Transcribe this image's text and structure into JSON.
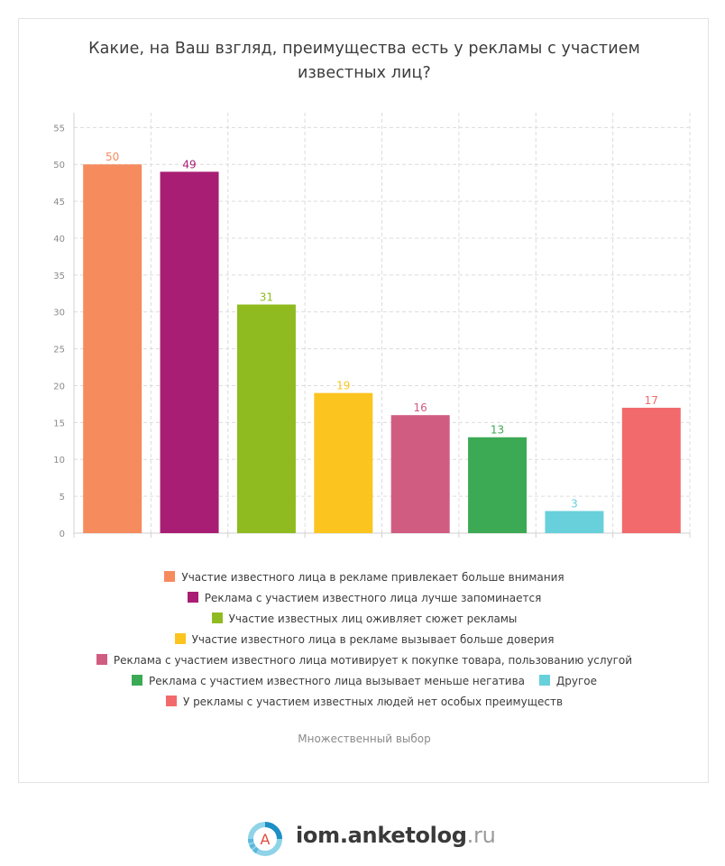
{
  "chart_data": {
    "type": "bar",
    "title_lines": [
      "Какие, на Ваш взгляд, преимущества есть у рекламы с участием",
      "известных лиц?"
    ],
    "categories": [
      "Участие известного лица в рекламе привлекает больше внимания",
      "Реклама с участием известного лица лучше запоминается",
      "Участие известных лиц оживляет сюжет рекламы",
      "Участие известного лица в рекламе вызывает больше доверия",
      "Реклама с участием известного лица мотивирует к покупке товара, пользованию услугой",
      "Реклама с участием известного лица вызывает меньше негатива",
      "Другое",
      "У рекламы с участием известных людей нет особых преимуществ"
    ],
    "values": [
      50,
      49,
      31,
      19,
      16,
      13,
      3,
      17
    ],
    "colors": [
      "#f68b5e",
      "#a81e74",
      "#8fbb21",
      "#fbc41f",
      "#d15c82",
      "#3caa55",
      "#67d0db",
      "#f26a6b"
    ],
    "ylim": [
      0,
      57
    ],
    "yticks": [
      0,
      5,
      10,
      15,
      20,
      25,
      30,
      35,
      40,
      45,
      50,
      55
    ],
    "grid": true,
    "legend_position": "bottom",
    "note": "Множественный выбор"
  },
  "brand": {
    "name": "iom.anketolog",
    "tld": ".ru",
    "logo_letter": "A"
  }
}
